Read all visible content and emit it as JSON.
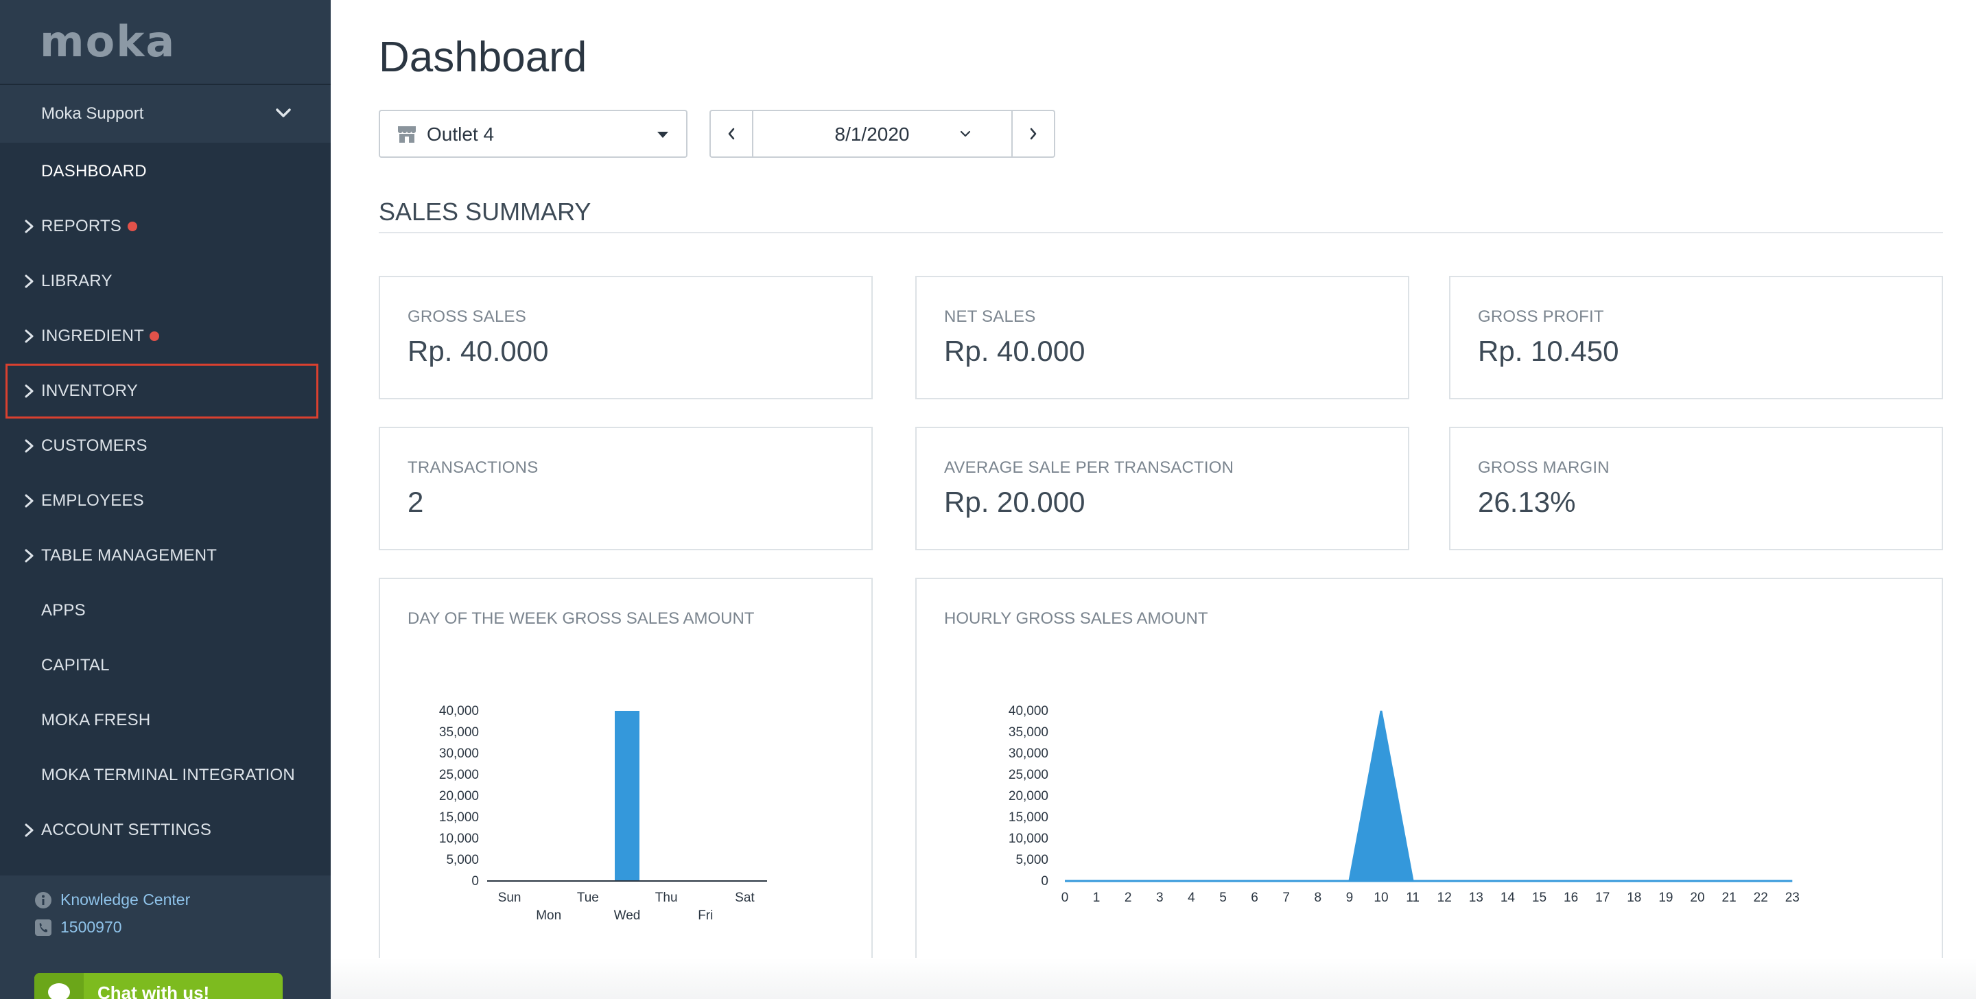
{
  "sidebar": {
    "logo": "moka",
    "account_name": "Moka Support",
    "items": [
      {
        "label": "DASHBOARD"
      },
      {
        "label": "REPORTS"
      },
      {
        "label": "LIBRARY"
      },
      {
        "label": "INGREDIENT"
      },
      {
        "label": "INVENTORY"
      },
      {
        "label": "CUSTOMERS"
      },
      {
        "label": "EMPLOYEES"
      },
      {
        "label": "TABLE MANAGEMENT"
      },
      {
        "label": "APPS"
      },
      {
        "label": "CAPITAL"
      },
      {
        "label": "MOKA FRESH"
      },
      {
        "label": "MOKA TERMINAL INTEGRATION"
      },
      {
        "label": "ACCOUNT SETTINGS"
      }
    ],
    "help": {
      "knowledge_center": "Knowledge Center",
      "phone": "1500970",
      "chat_label": "Chat with us!"
    }
  },
  "header": {
    "title": "Dashboard",
    "outlet": "Outlet 4",
    "date": "8/1/2020"
  },
  "sales_summary": {
    "title": "SALES SUMMARY",
    "cards": [
      {
        "label": "GROSS SALES",
        "value": "Rp. 40.000"
      },
      {
        "label": "NET SALES",
        "value": "Rp. 40.000"
      },
      {
        "label": "GROSS PROFIT",
        "value": "Rp. 10.450"
      },
      {
        "label": "TRANSACTIONS",
        "value": "2"
      },
      {
        "label": "AVERAGE SALE PER TRANSACTION",
        "value": "Rp. 20.000"
      },
      {
        "label": "GROSS MARGIN",
        "value": "26.13%"
      }
    ]
  },
  "colors": {
    "sidebar_bg": "#233242",
    "accent_blue": "#3498db",
    "alert_dot": "#e2524a",
    "chat_green": "#7dbb1f"
  },
  "chart_data": [
    {
      "type": "bar",
      "title": "DAY OF THE WEEK GROSS SALES AMOUNT",
      "categories": [
        "Sun",
        "Mon",
        "Tue",
        "Wed",
        "Thu",
        "Fri",
        "Sat"
      ],
      "values": [
        0,
        0,
        0,
        40000,
        0,
        0,
        0
      ],
      "ylim": [
        0,
        40000
      ],
      "yticks": [
        "0",
        "5,000",
        "10,000",
        "15,000",
        "20,000",
        "25,000",
        "30,000",
        "35,000",
        "40,000"
      ],
      "grid": false
    },
    {
      "type": "area",
      "title": "HOURLY GROSS SALES AMOUNT",
      "categories": [
        "0",
        "1",
        "2",
        "3",
        "4",
        "5",
        "6",
        "7",
        "8",
        "9",
        "10",
        "11",
        "12",
        "13",
        "14",
        "15",
        "16",
        "17",
        "18",
        "19",
        "20",
        "21",
        "22",
        "23"
      ],
      "values": [
        0,
        0,
        0,
        0,
        0,
        0,
        0,
        0,
        0,
        0,
        40000,
        0,
        0,
        0,
        0,
        0,
        0,
        0,
        0,
        0,
        0,
        0,
        0,
        0
      ],
      "ylim": [
        0,
        40000
      ],
      "yticks": [
        "0",
        "5,000",
        "10,000",
        "15,000",
        "20,000",
        "25,000",
        "30,000",
        "35,000",
        "40,000"
      ],
      "grid": false
    }
  ]
}
